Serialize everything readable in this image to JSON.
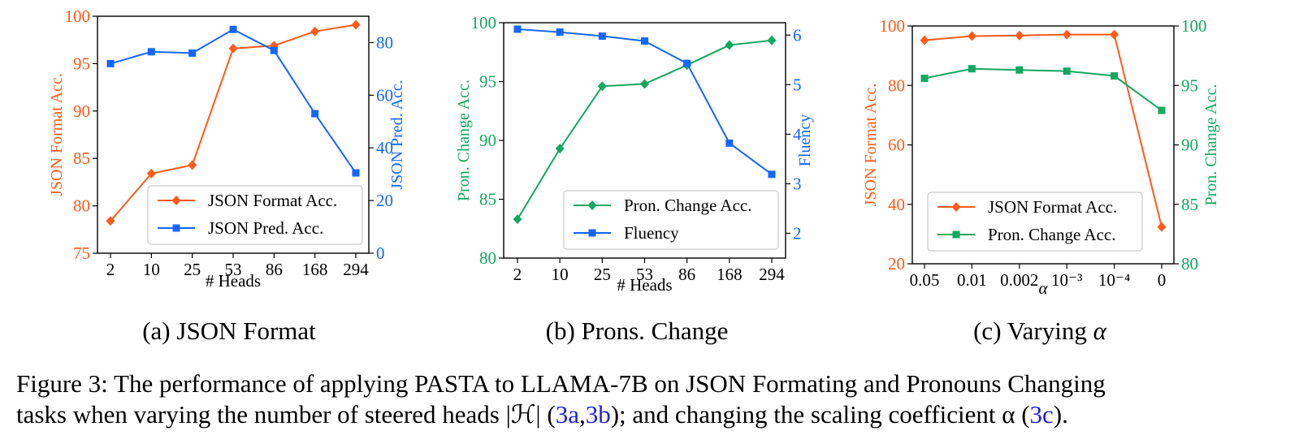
{
  "colors": {
    "orange": "#ff5b1a",
    "blue": "#1466ff",
    "green": "#13a860"
  },
  "chart_data": [
    {
      "id": "a",
      "type": "line",
      "title": "(a) JSON Format",
      "xlabel": "# Heads",
      "x_categories": [
        "2",
        "10",
        "25",
        "53",
        "86",
        "168",
        "294"
      ],
      "legend_position": "lower-right",
      "y_left": {
        "label": "JSON Format Acc.",
        "range": [
          75,
          100
        ],
        "ticks": [
          75,
          80,
          85,
          90,
          95,
          100
        ],
        "tick_labels": [
          "75",
          "80",
          "85",
          "90",
          "95",
          "100"
        ],
        "color": "#ff5b1a"
      },
      "y_right": {
        "label": "JSON Pred. Acc.",
        "range": [
          0,
          90
        ],
        "ticks": [
          0,
          20,
          40,
          60,
          80
        ],
        "tick_labels": [
          "0",
          "20",
          "40",
          "60",
          "80"
        ],
        "color": "#1466ff"
      },
      "series": [
        {
          "name": "JSON Format Acc.",
          "axis": "left",
          "marker": "diamond",
          "color": "#ff5b1a",
          "values": [
            78.4,
            83.4,
            84.3,
            96.6,
            96.9,
            98.4,
            99.1
          ]
        },
        {
          "name": "JSON Pred. Acc.",
          "axis": "right",
          "marker": "square",
          "color": "#1466ff",
          "values": [
            72,
            76.5,
            76,
            85,
            77,
            53,
            30.5
          ]
        }
      ]
    },
    {
      "id": "b",
      "type": "line",
      "title": "(b) Prons. Change",
      "xlabel": "# Heads",
      "x_categories": [
        "2",
        "10",
        "25",
        "53",
        "86",
        "168",
        "294"
      ],
      "legend_position": "lower-right",
      "y_left": {
        "label": "Pron. Change Acc.",
        "range": [
          80,
          100
        ],
        "ticks": [
          80,
          85,
          90,
          95,
          100
        ],
        "tick_labels": [
          "80",
          "85",
          "90",
          "95",
          "100"
        ],
        "color": "#13a860"
      },
      "y_right": {
        "label": "Fluency",
        "range": [
          1.5,
          6.25
        ],
        "ticks": [
          2,
          3,
          4,
          5,
          6
        ],
        "tick_labels": [
          "2",
          "3",
          "4",
          "5",
          "6"
        ],
        "color": "#1466ff"
      },
      "series": [
        {
          "name": "Pron. Change Acc.",
          "axis": "left",
          "marker": "diamond",
          "color": "#13a860",
          "values": [
            83.3,
            89.3,
            94.6,
            94.8,
            96.4,
            98.1,
            98.5
          ]
        },
        {
          "name": "Fluency",
          "axis": "right",
          "marker": "square",
          "color": "#1466ff",
          "values": [
            6.12,
            6.06,
            5.98,
            5.88,
            5.43,
            3.82,
            3.19
          ]
        }
      ]
    },
    {
      "id": "c",
      "type": "line",
      "title": "(c) Varying α",
      "xlabel": "α",
      "x_categories": [
        "0.05",
        "0.01",
        "0.002",
        "10⁻³",
        "10⁻⁴",
        "0"
      ],
      "legend_position": "lower-left",
      "y_left": {
        "label": "JSON Format Acc.",
        "range": [
          20,
          100
        ],
        "ticks": [
          20,
          40,
          60,
          80,
          100
        ],
        "tick_labels": [
          "20",
          "40",
          "60",
          "80",
          "100"
        ],
        "color": "#ff5b1a"
      },
      "y_right": {
        "label": "Pron. Change Acc.",
        "range": [
          80,
          100
        ],
        "ticks": [
          80,
          85,
          90,
          95,
          100
        ],
        "tick_labels": [
          "80",
          "85",
          "90",
          "95",
          "100"
        ],
        "color": "#13a860"
      },
      "series": [
        {
          "name": "JSON Format Acc.",
          "axis": "left",
          "marker": "diamond",
          "color": "#ff5b1a",
          "values": [
            95.2,
            96.6,
            96.8,
            97.1,
            97.1,
            32.4
          ]
        },
        {
          "name": "Pron. Change Acc.",
          "axis": "right",
          "marker": "square",
          "color": "#13a860",
          "values": [
            95.6,
            96.4,
            96.3,
            96.2,
            95.8,
            92.9
          ]
        }
      ]
    }
  ],
  "caption": {
    "label": "Figure 3:",
    "line1": "The performance of applying PASTA to LLAMA-7B on JSON Formating and Pronouns Changing",
    "line2_start": "tasks when varying the number of steered heads |ℋ| (",
    "ref_a": "3a",
    "sep": ",",
    "ref_b": "3b",
    "line2_mid": "); and changing the scaling coefficient α (",
    "ref_c": "3c",
    "line2_end": ")."
  }
}
